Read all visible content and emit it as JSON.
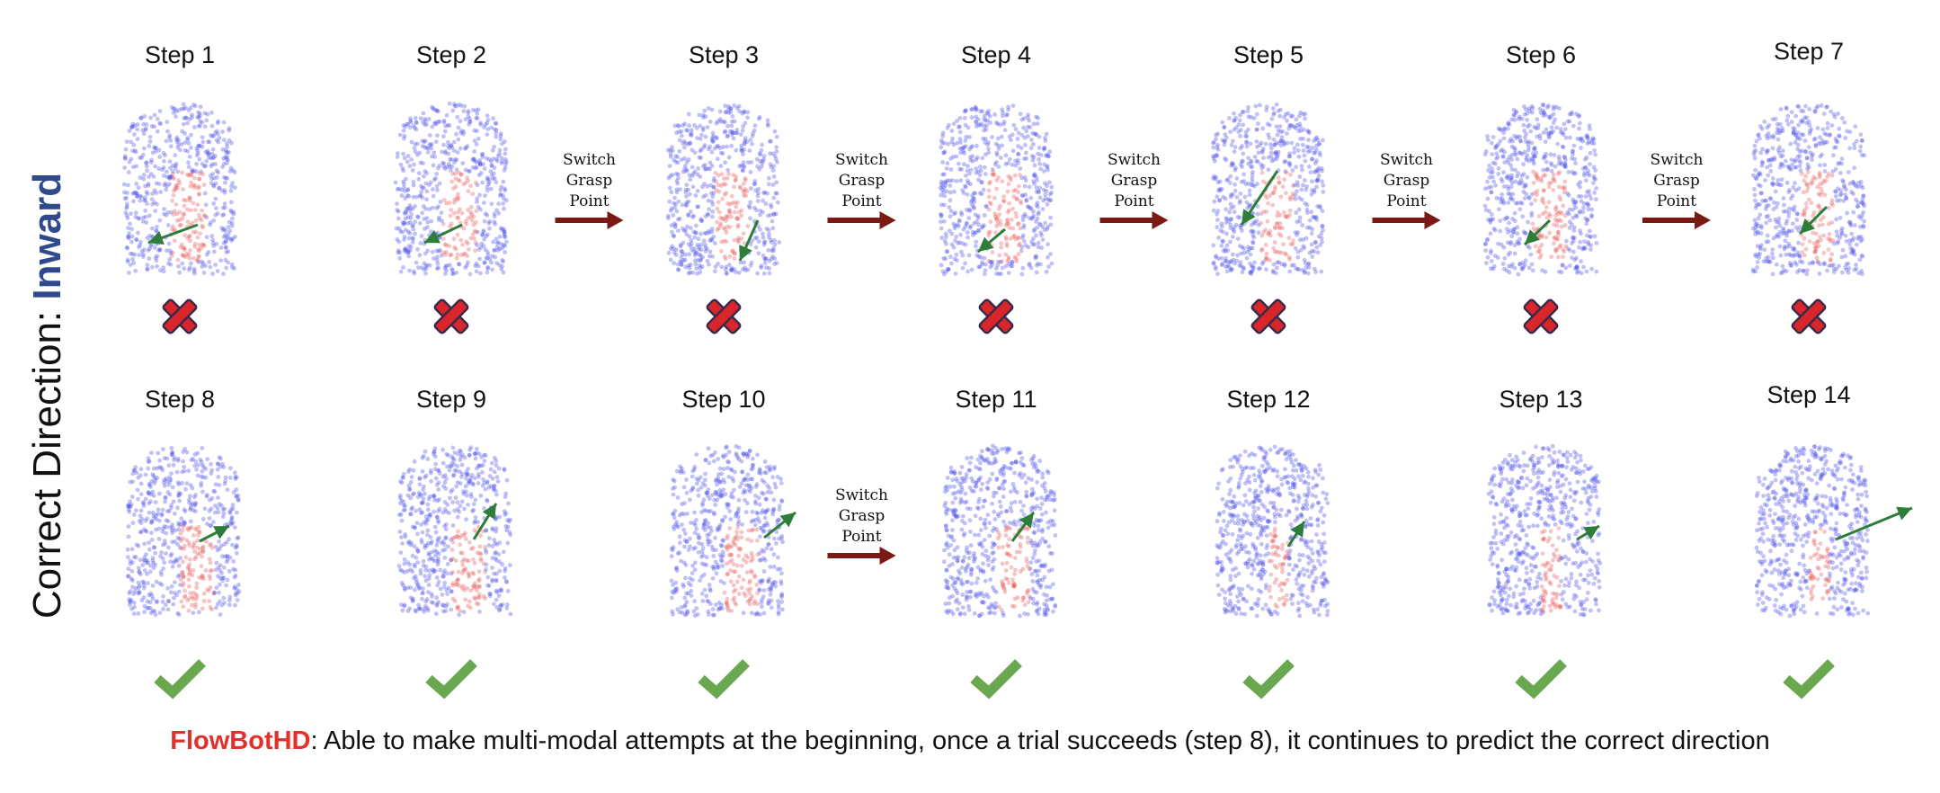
{
  "side_label": {
    "prefix": "Correct Direction: ",
    "accent": "Inward"
  },
  "rows": [
    {
      "steps": [
        {
          "title": "Step 1",
          "result": "fail"
        },
        {
          "title": "Step 2",
          "result": "fail"
        },
        {
          "title": "Step 3",
          "result": "fail"
        },
        {
          "title": "Step 4",
          "result": "fail"
        },
        {
          "title": "Step 5",
          "result": "fail"
        },
        {
          "title": "Step 6",
          "result": "fail"
        },
        {
          "title": "Step 7",
          "result": "fail"
        }
      ],
      "switch_after": [
        2,
        3,
        4,
        5,
        6
      ]
    },
    {
      "steps": [
        {
          "title": "Step 8",
          "result": "success"
        },
        {
          "title": "Step 9",
          "result": "success"
        },
        {
          "title": "Step 10",
          "result": "success"
        },
        {
          "title": "Step 11",
          "result": "success"
        },
        {
          "title": "Step 12",
          "result": "success"
        },
        {
          "title": "Step 13",
          "result": "success"
        },
        {
          "title": "Step 14",
          "result": "success"
        }
      ],
      "switch_after": [
        3
      ]
    }
  ],
  "switch_label": [
    "Switch",
    "Grasp",
    "Point"
  ],
  "caption": {
    "method": "FlowBotHD",
    "text": ": Able to make multi-modal attempts at the beginning, once a trial succeeds (step 8), it continues to predict the correct direction"
  },
  "colors": {
    "points": "#4a4ee8",
    "highlight": "#e85a5a",
    "flow_arrow": "#2e7d3a",
    "switch_arrow": "#7b1a14",
    "fail_mark": "#d9262b",
    "success_mark": "#6aa84f"
  }
}
